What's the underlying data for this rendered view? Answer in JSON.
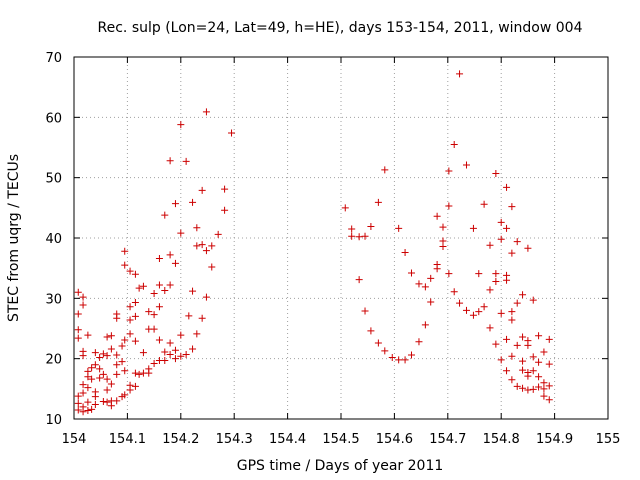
{
  "chart_data": {
    "type": "scatter",
    "title": "Rec. sulp (Lon=24, Lat=49, h=HE), days 153-154, 2011, window 004",
    "xlabel": "GPS time / Days of year 2011",
    "ylabel": "STEC from uqrg / TECUs",
    "xlim": [
      154,
      155
    ],
    "ylim": [
      10,
      70
    ],
    "xticks": [
      154,
      154.1,
      154.2,
      154.3,
      154.4,
      154.5,
      154.6,
      154.7,
      154.8,
      154.9,
      155
    ],
    "xtick_labels": [
      "154",
      "154.1",
      "154.2",
      "154.3",
      "154.4",
      "154.5",
      "154.6",
      "154.7",
      "154.8",
      "154.9",
      "155"
    ],
    "yticks": [
      10,
      20,
      30,
      40,
      50,
      60,
      70
    ],
    "ytick_labels": [
      "10",
      "20",
      "30",
      "40",
      "50",
      "60",
      "70"
    ],
    "grid": true,
    "marker": "+",
    "color": "#cc0000",
    "series": [
      {
        "name": "STEC",
        "points": [
          [
            154.008,
            31.0
          ],
          [
            154.008,
            27.4
          ],
          [
            154.008,
            24.8
          ],
          [
            154.008,
            23.4
          ],
          [
            154.008,
            13.8
          ],
          [
            154.008,
            12.6
          ],
          [
            154.008,
            11.5
          ],
          [
            154.017,
            30.2
          ],
          [
            154.017,
            28.9
          ],
          [
            154.017,
            21.2
          ],
          [
            154.017,
            20.5
          ],
          [
            154.017,
            15.7
          ],
          [
            154.017,
            14.3
          ],
          [
            154.017,
            12.0
          ],
          [
            154.017,
            11.2
          ],
          [
            154.026,
            23.9
          ],
          [
            154.026,
            17.9
          ],
          [
            154.026,
            17.0
          ],
          [
            154.026,
            15.2
          ],
          [
            154.026,
            12.8
          ],
          [
            154.026,
            11.4
          ],
          [
            154.033,
            18.5
          ],
          [
            154.033,
            16.6
          ],
          [
            154.033,
            11.6
          ],
          [
            154.04,
            21.0
          ],
          [
            154.04,
            19.0
          ],
          [
            154.04,
            14.5
          ],
          [
            154.04,
            13.7
          ],
          [
            154.04,
            12.4
          ],
          [
            154.048,
            20.2
          ],
          [
            154.048,
            18.3
          ],
          [
            154.048,
            16.8
          ],
          [
            154.055,
            20.8
          ],
          [
            154.055,
            17.4
          ],
          [
            154.055,
            12.9
          ],
          [
            154.062,
            23.6
          ],
          [
            154.062,
            20.5
          ],
          [
            154.062,
            16.6
          ],
          [
            154.062,
            14.8
          ],
          [
            154.062,
            12.8
          ],
          [
            154.07,
            23.8
          ],
          [
            154.07,
            21.6
          ],
          [
            154.07,
            15.8
          ],
          [
            154.07,
            13.0
          ],
          [
            154.07,
            12.2
          ],
          [
            154.08,
            27.4
          ],
          [
            154.08,
            26.7
          ],
          [
            154.08,
            20.6
          ],
          [
            154.08,
            19.0
          ],
          [
            154.08,
            17.4
          ],
          [
            154.08,
            13.0
          ],
          [
            154.09,
            22.1
          ],
          [
            154.09,
            19.5
          ],
          [
            154.09,
            13.7
          ],
          [
            154.095,
            37.8
          ],
          [
            154.095,
            35.5
          ],
          [
            154.095,
            23.1
          ],
          [
            154.095,
            18.0
          ],
          [
            154.095,
            14.0
          ],
          [
            154.105,
            34.5
          ],
          [
            154.105,
            28.6
          ],
          [
            154.105,
            26.4
          ],
          [
            154.105,
            24.1
          ],
          [
            154.105,
            15.6
          ],
          [
            154.105,
            14.8
          ],
          [
            154.115,
            34.0
          ],
          [
            154.115,
            29.3
          ],
          [
            154.115,
            27.0
          ],
          [
            154.115,
            22.9
          ],
          [
            154.115,
            17.6
          ],
          [
            154.115,
            15.4
          ],
          [
            154.122,
            31.7
          ],
          [
            154.122,
            17.4
          ],
          [
            154.13,
            32.0
          ],
          [
            154.13,
            21.0
          ],
          [
            154.13,
            17.6
          ],
          [
            154.14,
            27.8
          ],
          [
            154.14,
            24.9
          ],
          [
            154.14,
            18.3
          ],
          [
            154.14,
            17.6
          ],
          [
            154.15,
            30.8
          ],
          [
            154.15,
            27.3
          ],
          [
            154.15,
            24.9
          ],
          [
            154.15,
            19.2
          ],
          [
            154.16,
            36.6
          ],
          [
            154.16,
            32.2
          ],
          [
            154.16,
            28.6
          ],
          [
            154.16,
            23.1
          ],
          [
            154.16,
            19.7
          ],
          [
            154.17,
            43.8
          ],
          [
            154.17,
            31.3
          ],
          [
            154.17,
            21.1
          ],
          [
            154.17,
            19.7
          ],
          [
            154.18,
            52.8
          ],
          [
            154.18,
            37.2
          ],
          [
            154.18,
            32.2
          ],
          [
            154.18,
            22.6
          ],
          [
            154.18,
            20.7
          ],
          [
            154.19,
            45.7
          ],
          [
            154.19,
            35.8
          ],
          [
            154.19,
            21.4
          ],
          [
            154.19,
            20.0
          ],
          [
            154.2,
            58.8
          ],
          [
            154.2,
            40.8
          ],
          [
            154.2,
            23.9
          ],
          [
            154.2,
            20.4
          ],
          [
            154.21,
            52.7
          ],
          [
            154.21,
            20.7
          ],
          [
            154.215,
            27.1
          ],
          [
            154.222,
            45.9
          ],
          [
            154.222,
            31.2
          ],
          [
            154.222,
            21.6
          ],
          [
            154.23,
            41.7
          ],
          [
            154.23,
            38.7
          ],
          [
            154.23,
            24.1
          ],
          [
            154.24,
            47.9
          ],
          [
            154.24,
            38.9
          ],
          [
            154.24,
            26.7
          ],
          [
            154.248,
            60.9
          ],
          [
            154.248,
            37.9
          ],
          [
            154.248,
            30.2
          ],
          [
            154.258,
            38.7
          ],
          [
            154.258,
            35.2
          ],
          [
            154.27,
            40.6
          ],
          [
            154.282,
            48.1
          ],
          [
            154.282,
            44.6
          ],
          [
            154.295,
            57.4
          ],
          [
            154.508,
            45.0
          ],
          [
            154.52,
            41.5
          ],
          [
            154.52,
            40.3
          ],
          [
            154.534,
            40.2
          ],
          [
            154.534,
            33.1
          ],
          [
            154.545,
            40.3
          ],
          [
            154.545,
            27.9
          ],
          [
            154.556,
            41.9
          ],
          [
            154.556,
            24.6
          ],
          [
            154.57,
            45.9
          ],
          [
            154.57,
            22.6
          ],
          [
            154.582,
            51.3
          ],
          [
            154.582,
            21.3
          ],
          [
            154.596,
            20.2
          ],
          [
            154.608,
            41.6
          ],
          [
            154.608,
            19.8
          ],
          [
            154.62,
            37.6
          ],
          [
            154.62,
            19.8
          ],
          [
            154.632,
            34.2
          ],
          [
            154.632,
            20.6
          ],
          [
            154.646,
            32.4
          ],
          [
            154.646,
            22.8
          ],
          [
            154.658,
            31.9
          ],
          [
            154.658,
            25.6
          ],
          [
            154.668,
            33.3
          ],
          [
            154.668,
            29.4
          ],
          [
            154.68,
            43.6
          ],
          [
            154.68,
            35.6
          ],
          [
            154.68,
            34.9
          ],
          [
            154.691,
            41.8
          ],
          [
            154.691,
            38.6
          ],
          [
            154.691,
            39.5
          ],
          [
            154.702,
            51.1
          ],
          [
            154.702,
            45.3
          ],
          [
            154.702,
            34.1
          ],
          [
            154.712,
            55.5
          ],
          [
            154.712,
            31.1
          ],
          [
            154.722,
            67.2
          ],
          [
            154.722,
            29.2
          ],
          [
            154.735,
            52.1
          ],
          [
            154.735,
            28.0
          ],
          [
            154.748,
            41.6
          ],
          [
            154.748,
            27.2
          ],
          [
            154.758,
            34.1
          ],
          [
            154.758,
            27.8
          ],
          [
            154.768,
            45.6
          ],
          [
            154.768,
            28.6
          ],
          [
            154.779,
            38.8
          ],
          [
            154.779,
            31.4
          ],
          [
            154.779,
            25.1
          ],
          [
            154.79,
            50.7
          ],
          [
            154.79,
            34.1
          ],
          [
            154.79,
            32.8
          ],
          [
            154.79,
            22.4
          ],
          [
            154.8,
            42.6
          ],
          [
            154.8,
            39.8
          ],
          [
            154.8,
            27.5
          ],
          [
            154.8,
            19.8
          ],
          [
            154.81,
            48.4
          ],
          [
            154.81,
            41.6
          ],
          [
            154.81,
            33.8
          ],
          [
            154.81,
            33.0
          ],
          [
            154.81,
            23.2
          ],
          [
            154.81,
            18.0
          ],
          [
            154.82,
            45.2
          ],
          [
            154.82,
            37.5
          ],
          [
            154.82,
            27.8
          ],
          [
            154.82,
            26.4
          ],
          [
            154.82,
            20.4
          ],
          [
            154.82,
            16.5
          ],
          [
            154.83,
            39.4
          ],
          [
            154.83,
            29.2
          ],
          [
            154.83,
            22.2
          ],
          [
            154.83,
            15.4
          ],
          [
            154.84,
            30.6
          ],
          [
            154.84,
            23.6
          ],
          [
            154.84,
            19.6
          ],
          [
            154.84,
            18.1
          ],
          [
            154.84,
            15.1
          ],
          [
            154.85,
            38.3
          ],
          [
            154.85,
            23.0
          ],
          [
            154.85,
            22.2
          ],
          [
            154.85,
            17.7
          ],
          [
            154.85,
            17.1
          ],
          [
            154.85,
            14.8
          ],
          [
            154.86,
            29.7
          ],
          [
            154.86,
            20.3
          ],
          [
            154.86,
            18.0
          ],
          [
            154.86,
            14.9
          ],
          [
            154.87,
            23.8
          ],
          [
            154.87,
            19.4
          ],
          [
            154.87,
            17.0
          ],
          [
            154.87,
            15.3
          ],
          [
            154.88,
            21.1
          ],
          [
            154.88,
            16.0
          ],
          [
            154.88,
            15.0
          ],
          [
            154.88,
            13.8
          ],
          [
            154.89,
            23.2
          ],
          [
            154.89,
            19.1
          ],
          [
            154.89,
            15.5
          ],
          [
            154.89,
            13.2
          ]
        ]
      }
    ]
  }
}
